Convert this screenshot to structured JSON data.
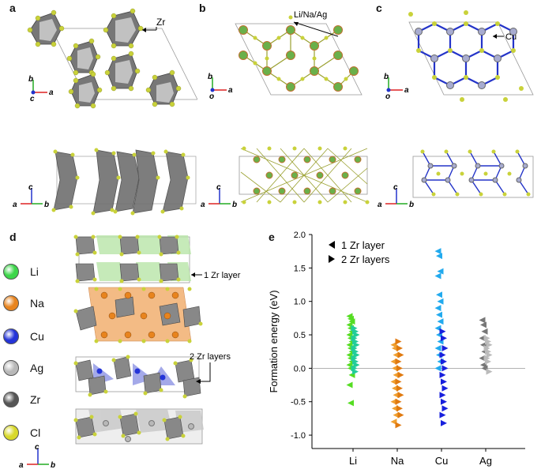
{
  "panels": {
    "a": "a",
    "b": "b",
    "c": "c",
    "d": "d",
    "e": "e"
  },
  "annotations": {
    "zr": "Zr",
    "li_na_ag": "Li/Na/Ag",
    "cu": "Cu",
    "one_zr_layer": "1 Zr layer",
    "two_zr_layers": "2 Zr layers"
  },
  "axes_labels": {
    "a": "a",
    "b": "b",
    "c": "c",
    "o": "o"
  },
  "element_legend": [
    {
      "label": "Li",
      "color": "#3dd64a"
    },
    {
      "label": "Na",
      "color": "#e8841e"
    },
    {
      "label": "Cu",
      "color": "#2434d8"
    },
    {
      "label": "Ag",
      "color": "#b8b8b8"
    },
    {
      "label": "Zr",
      "color": "#555555"
    },
    {
      "label": "Cl",
      "color": "#d8d82a"
    }
  ],
  "chart_data": {
    "type": "scatter",
    "ylabel": "Formation energy (eV)",
    "categories": [
      "Li",
      "Na",
      "Cu",
      "Ag"
    ],
    "ylim": [
      -1.2,
      2.0
    ],
    "yticks": [
      "2.0",
      "1.5",
      "1.0",
      "0.5",
      "0.0",
      "-0.5",
      "-1.0"
    ],
    "legend": [
      "1 Zr layer",
      "2 Zr layers"
    ],
    "series": [
      {
        "name": "1 Zr layer",
        "category": "Li",
        "color": "#55dd22",
        "values": [
          0.78,
          0.74,
          0.7,
          0.65,
          0.6,
          0.55,
          0.5,
          0.45,
          0.4,
          0.35,
          0.3,
          0.25,
          0.2,
          0.15,
          0.1,
          0.05,
          0.0,
          -0.1,
          -0.25,
          -0.52
        ]
      },
      {
        "name": "2 Zr layers",
        "category": "Li",
        "color": "#22cc99",
        "values": [
          0.6,
          0.55,
          0.5,
          0.45,
          0.4,
          0.35,
          0.3,
          0.25,
          0.2,
          0.15,
          0.1,
          0.05,
          0.0,
          -0.05
        ]
      },
      {
        "name": "1 Zr layer",
        "category": "Na",
        "color": "#f0a030",
        "values": [
          0.35,
          0.3,
          0.2,
          0.1,
          0.0,
          -0.1,
          -0.2,
          -0.3,
          -0.4,
          -0.5,
          -0.6,
          -0.7,
          -0.8
        ]
      },
      {
        "name": "2 Zr layers",
        "category": "Na",
        "color": "#e07a10",
        "values": [
          0.4,
          0.3,
          0.2,
          0.1,
          0.0,
          -0.1,
          -0.2,
          -0.3,
          -0.4,
          -0.5,
          -0.6,
          -0.7,
          -0.85
        ]
      },
      {
        "name": "1 Zr layer",
        "category": "Cu",
        "color": "#22aaee",
        "values": [
          1.75,
          1.68,
          1.45,
          1.38,
          1.1,
          1.0,
          0.9,
          0.8,
          0.7,
          0.6,
          0.5,
          0.4,
          0.3,
          0.2,
          0.1,
          0.0
        ]
      },
      {
        "name": "2 Zr layers",
        "category": "Cu",
        "color": "#1820dd",
        "values": [
          0.55,
          0.45,
          0.3,
          0.2,
          0.1,
          0.0,
          -0.1,
          -0.2,
          -0.3,
          -0.4,
          -0.5,
          -0.6,
          -0.7,
          -0.82
        ]
      },
      {
        "name": "1 Zr layer",
        "category": "Ag",
        "color": "#777777",
        "values": [
          0.72,
          0.65,
          0.55,
          0.45,
          0.35,
          0.25,
          0.15,
          0.05,
          0.0
        ]
      },
      {
        "name": "2 Zr layers",
        "category": "Ag",
        "color": "#bbbbbb",
        "values": [
          0.45,
          0.4,
          0.35,
          0.3,
          0.25,
          0.2,
          0.15,
          0.1,
          -0.05
        ]
      }
    ]
  }
}
